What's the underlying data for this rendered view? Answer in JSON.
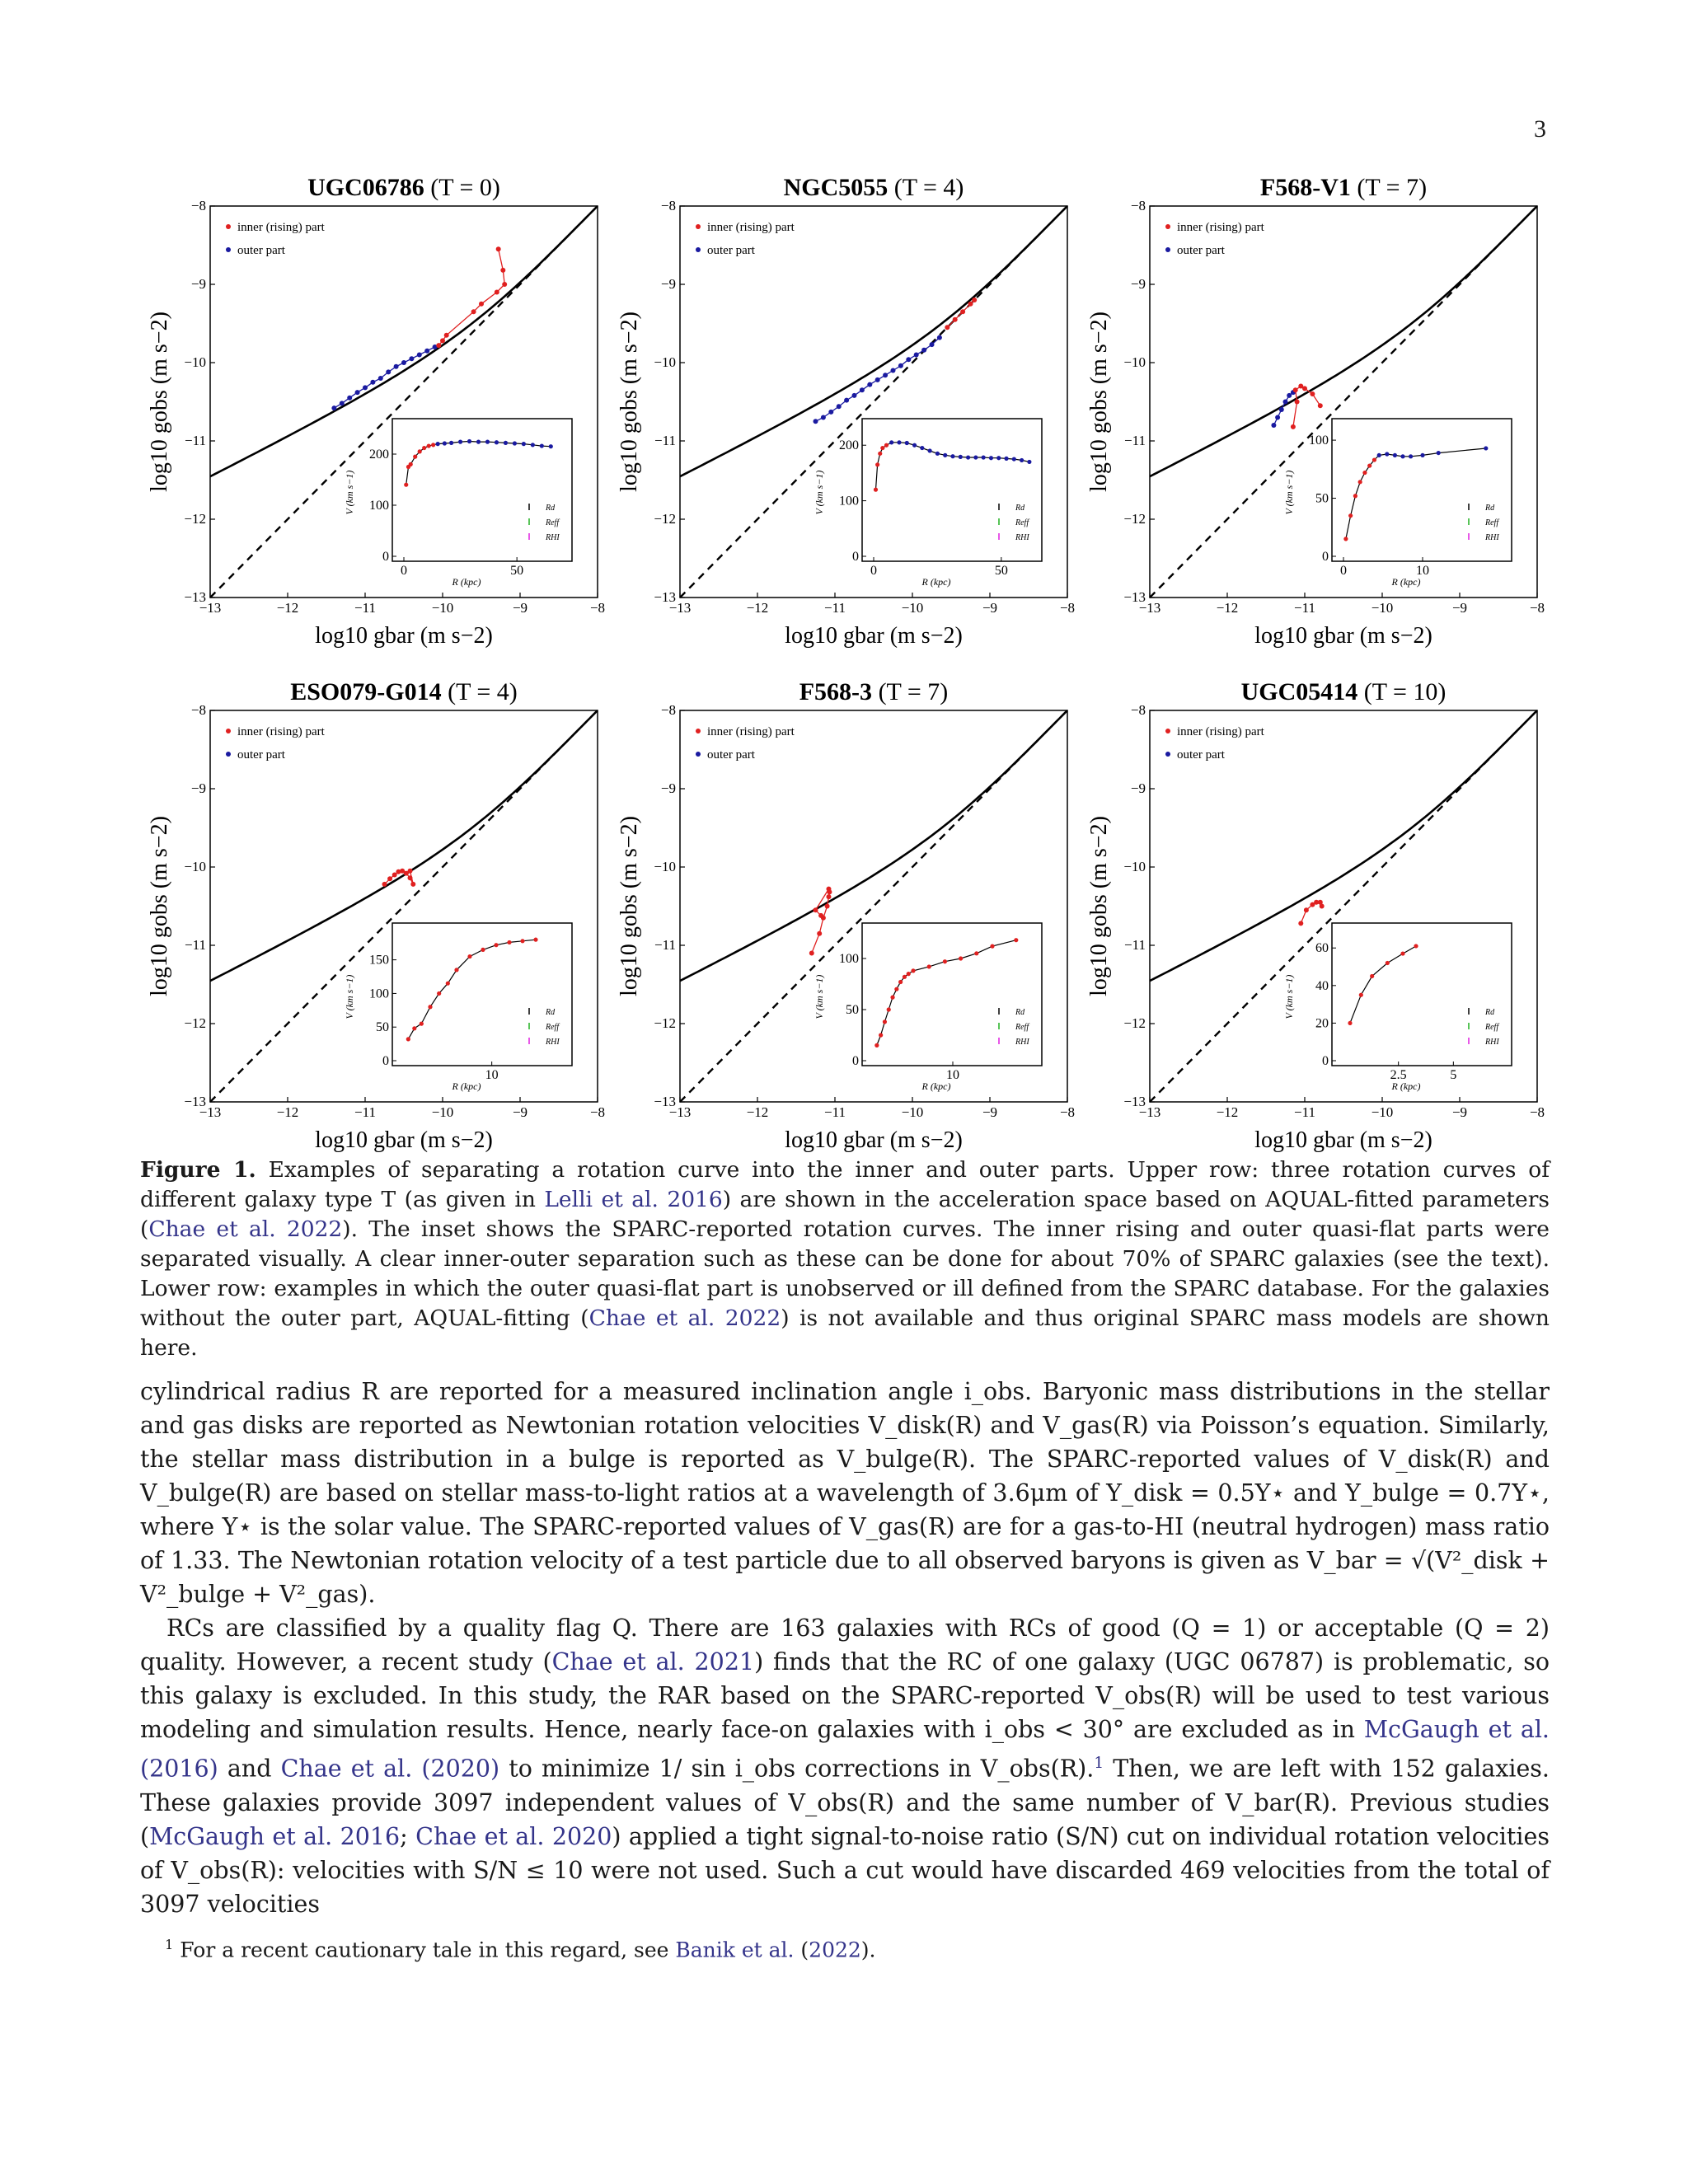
{
  "page_number": "3",
  "chart_data": [
    {
      "type": "scatter",
      "title_name": "UGC06786",
      "title_type": "(T = 0)",
      "xlabel": "log10 gbar (m s−2)",
      "ylabel": "log10 gobs (m s−2)",
      "xlim": [
        -13,
        -8
      ],
      "ylim": [
        -13,
        -8
      ],
      "xticks": [
        "−13",
        "−12",
        "−11",
        "−10",
        "−9",
        "−8"
      ],
      "yticks": [
        "−13",
        "−12",
        "−11",
        "−10",
        "−9",
        "−8"
      ],
      "legend": [
        "inner (rising) part",
        "outer part"
      ],
      "inner": [
        [
          -9.28,
          -8.55
        ],
        [
          -9.22,
          -8.82
        ],
        [
          -9.2,
          -9.0
        ],
        [
          -9.3,
          -9.1
        ],
        [
          -9.5,
          -9.25
        ],
        [
          -9.6,
          -9.35
        ],
        [
          -9.95,
          -9.65
        ],
        [
          -10.0,
          -9.72
        ],
        [
          -10.05,
          -9.78
        ]
      ],
      "outer": [
        [
          -11.4,
          -10.58
        ],
        [
          -11.3,
          -10.52
        ],
        [
          -11.2,
          -10.45
        ],
        [
          -11.1,
          -10.38
        ],
        [
          -11.0,
          -10.32
        ],
        [
          -10.9,
          -10.25
        ],
        [
          -10.8,
          -10.2
        ],
        [
          -10.7,
          -10.12
        ],
        [
          -10.6,
          -10.05
        ],
        [
          -10.5,
          -10.0
        ],
        [
          -10.4,
          -9.95
        ],
        [
          -10.3,
          -9.9
        ],
        [
          -10.2,
          -9.85
        ],
        [
          -10.1,
          -9.8
        ]
      ],
      "inset": {
        "ylabel": "V (km s−1)",
        "xlabel": "R (kpc)",
        "xlim": [
          0,
          70
        ],
        "ylim": [
          0,
          250
        ],
        "xticks": [
          0,
          50
        ],
        "yticks": [
          0,
          100,
          200
        ],
        "legend": [
          "Rd",
          "Reff",
          "RHI"
        ],
        "inner": [
          [
            1,
            140
          ],
          [
            2,
            175
          ],
          [
            3,
            180
          ],
          [
            5,
            195
          ],
          [
            7,
            205
          ],
          [
            9,
            212
          ],
          [
            11,
            216
          ],
          [
            13,
            218
          ]
        ],
        "outer": [
          [
            15,
            220
          ],
          [
            18,
            221
          ],
          [
            21,
            222
          ],
          [
            25,
            224
          ],
          [
            29,
            225
          ],
          [
            33,
            224
          ],
          [
            37,
            224
          ],
          [
            41,
            223
          ],
          [
            45,
            222
          ],
          [
            49,
            221
          ],
          [
            53,
            220
          ],
          [
            57,
            218
          ],
          [
            61,
            216
          ],
          [
            65,
            215
          ]
        ]
      }
    },
    {
      "type": "scatter",
      "title_name": "NGC5055",
      "title_type": "(T = 4)",
      "xlabel": "log10 gbar (m s−2)",
      "ylabel": "log10 gobs (m s−2)",
      "xlim": [
        -13,
        -8
      ],
      "ylim": [
        -13,
        -8
      ],
      "xticks": [
        "−13",
        "−12",
        "−11",
        "−10",
        "−9",
        "−8"
      ],
      "yticks": [
        "−13",
        "−12",
        "−11",
        "−10",
        "−9",
        "−8"
      ],
      "legend": [
        "inner (rising) part",
        "outer part"
      ],
      "inner": [
        [
          -9.55,
          -9.55
        ],
        [
          -9.45,
          -9.45
        ],
        [
          -9.35,
          -9.35
        ],
        [
          -9.25,
          -9.25
        ],
        [
          -9.2,
          -9.2
        ]
      ],
      "outer": [
        [
          -11.25,
          -10.75
        ],
        [
          -11.15,
          -10.7
        ],
        [
          -11.05,
          -10.63
        ],
        [
          -10.95,
          -10.56
        ],
        [
          -10.85,
          -10.48
        ],
        [
          -10.75,
          -10.42
        ],
        [
          -10.65,
          -10.35
        ],
        [
          -10.55,
          -10.28
        ],
        [
          -10.45,
          -10.22
        ],
        [
          -10.35,
          -10.16
        ],
        [
          -10.25,
          -10.1
        ],
        [
          -10.15,
          -10.04
        ],
        [
          -10.05,
          -9.96
        ],
        [
          -9.95,
          -9.9
        ],
        [
          -9.85,
          -9.84
        ],
        [
          -9.75,
          -9.77
        ],
        [
          -9.65,
          -9.68
        ]
      ],
      "inset": {
        "ylabel": "V (km s−1)",
        "xlabel": "R (kpc)",
        "xlim": [
          0,
          62
        ],
        "ylim": [
          0,
          230
        ],
        "xticks": [
          0,
          50
        ],
        "yticks": [
          0,
          100,
          200
        ],
        "legend": [
          "Rd",
          "Reff",
          "RHI"
        ],
        "inner": [
          [
            0.8,
            120
          ],
          [
            1.5,
            165
          ],
          [
            2.5,
            185
          ],
          [
            3.5,
            195
          ],
          [
            5,
            200
          ]
        ],
        "outer": [
          [
            7,
            205
          ],
          [
            10,
            205
          ],
          [
            13,
            204
          ],
          [
            16,
            200
          ],
          [
            19,
            195
          ],
          [
            22,
            190
          ],
          [
            25,
            185
          ],
          [
            28,
            182
          ],
          [
            31,
            180
          ],
          [
            34,
            179
          ],
          [
            37,
            178
          ],
          [
            40,
            178
          ],
          [
            43,
            178
          ],
          [
            46,
            177
          ],
          [
            49,
            177
          ],
          [
            52,
            176
          ],
          [
            55,
            175
          ],
          [
            58,
            173
          ],
          [
            61,
            170
          ]
        ]
      }
    },
    {
      "type": "scatter",
      "title_name": "F568-V1",
      "title_type": "(T = 7)",
      "xlabel": "log10 gbar (m s−2)",
      "ylabel": "log10 gobs (m s−2)",
      "xlim": [
        -13,
        -8
      ],
      "ylim": [
        -13,
        -8
      ],
      "xticks": [
        "−13",
        "−12",
        "−11",
        "−10",
        "−9",
        "−8"
      ],
      "yticks": [
        "−13",
        "−12",
        "−11",
        "−10",
        "−9",
        "−8"
      ],
      "legend": [
        "inner (rising) part",
        "outer part"
      ],
      "inner": [
        [
          -10.8,
          -10.55
        ],
        [
          -10.9,
          -10.4
        ],
        [
          -11.0,
          -10.33
        ],
        [
          -11.05,
          -10.3
        ],
        [
          -11.12,
          -10.35
        ],
        [
          -11.1,
          -10.5
        ],
        [
          -11.15,
          -10.82
        ]
      ],
      "outer": [
        [
          -11.15,
          -10.38
        ],
        [
          -11.2,
          -10.42
        ],
        [
          -11.25,
          -10.5
        ],
        [
          -11.3,
          -10.6
        ],
        [
          -11.35,
          -10.7
        ],
        [
          -11.4,
          -10.8
        ]
      ],
      "inset": {
        "ylabel": "V (km s−1)",
        "xlabel": "R (kpc)",
        "xlim": [
          0,
          20
        ],
        "ylim": [
          0,
          110
        ],
        "xticks": [
          0,
          10
        ],
        "yticks": [
          0,
          50,
          100
        ],
        "legend": [
          "Rd",
          "Reff",
          "RHI"
        ],
        "inner": [
          [
            0.3,
            15
          ],
          [
            0.9,
            35
          ],
          [
            1.5,
            52
          ],
          [
            2.1,
            64
          ],
          [
            2.7,
            72
          ],
          [
            3.3,
            78
          ],
          [
            3.9,
            83
          ]
        ],
        "outer": [
          [
            4.5,
            87
          ],
          [
            5.5,
            88
          ],
          [
            6.5,
            87
          ],
          [
            7.5,
            86
          ],
          [
            8.5,
            86
          ],
          [
            10,
            87
          ],
          [
            12,
            89
          ],
          [
            18,
            93
          ]
        ]
      }
    },
    {
      "type": "scatter",
      "title_name": "ESO079-G014",
      "title_type": "(T = 4)",
      "xlabel": "log10 gbar (m s−2)",
      "ylabel": "log10 gobs (m s−2)",
      "xlim": [
        -13,
        -8
      ],
      "ylim": [
        -13,
        -8
      ],
      "xticks": [
        "−13",
        "−12",
        "−11",
        "−10",
        "−9",
        "−8"
      ],
      "yticks": [
        "−13",
        "−12",
        "−11",
        "−10",
        "−9",
        "−8"
      ],
      "legend": [
        "inner (rising) part",
        "outer part"
      ],
      "inner": [
        [
          -10.75,
          -10.22
        ],
        [
          -10.68,
          -10.15
        ],
        [
          -10.62,
          -10.1
        ],
        [
          -10.57,
          -10.06
        ],
        [
          -10.52,
          -10.05
        ],
        [
          -10.47,
          -10.08
        ],
        [
          -10.42,
          -10.14
        ],
        [
          -10.38,
          -10.22
        ],
        [
          -10.42,
          -10.05
        ]
      ],
      "outer": [],
      "inset": {
        "ylabel": "V (km s−1)",
        "xlabel": "R (kpc)",
        "xlim": [
          0,
          18
        ],
        "ylim": [
          0,
          190
        ],
        "xticks": [
          10
        ],
        "yticks": [
          0,
          50,
          100,
          150
        ],
        "legend": [
          "Rd",
          "Reff",
          "RHI"
        ],
        "inner": [
          [
            0.5,
            32
          ],
          [
            1.2,
            48
          ],
          [
            2,
            55
          ],
          [
            3,
            80
          ],
          [
            4,
            100
          ],
          [
            5,
            115
          ],
          [
            6,
            135
          ],
          [
            7.5,
            155
          ],
          [
            9,
            165
          ],
          [
            10.5,
            172
          ],
          [
            12,
            176
          ],
          [
            13.5,
            178
          ],
          [
            15,
            180
          ]
        ],
        "outer": []
      }
    },
    {
      "type": "scatter",
      "title_name": "F568-3",
      "title_type": "(T = 7)",
      "xlabel": "log10 gbar (m s−2)",
      "ylabel": "log10 gobs (m s−2)",
      "xlim": [
        -13,
        -8
      ],
      "ylim": [
        -13,
        -8
      ],
      "xticks": [
        "−13",
        "−12",
        "−11",
        "−10",
        "−9",
        "−8"
      ],
      "yticks": [
        "−13",
        "−12",
        "−11",
        "−10",
        "−9",
        "−8"
      ],
      "legend": [
        "inner (rising) part",
        "outer part"
      ],
      "inner": [
        [
          -11.3,
          -11.1
        ],
        [
          -11.2,
          -10.85
        ],
        [
          -11.15,
          -10.65
        ],
        [
          -11.1,
          -10.5
        ],
        [
          -11.08,
          -10.38
        ],
        [
          -11.07,
          -10.32
        ],
        [
          -11.08,
          -10.28
        ],
        [
          -11.25,
          -10.55
        ],
        [
          -11.18,
          -10.62
        ]
      ],
      "outer": [],
      "inset": {
        "ylabel": "V (km s−1)",
        "xlabel": "R (kpc)",
        "xlim": [
          0,
          20
        ],
        "ylim": [
          0,
          125
        ],
        "xticks": [
          10
        ],
        "yticks": [
          0,
          50,
          100
        ],
        "legend": [
          "Rd",
          "Reff",
          "RHI"
        ],
        "inner": [
          [
            0.4,
            15
          ],
          [
            0.9,
            25
          ],
          [
            1.4,
            38
          ],
          [
            1.9,
            50
          ],
          [
            2.4,
            62
          ],
          [
            2.9,
            70
          ],
          [
            3.4,
            77
          ],
          [
            3.9,
            82
          ],
          [
            4.4,
            85
          ],
          [
            5,
            88
          ],
          [
            7,
            92
          ],
          [
            9,
            97
          ],
          [
            11,
            100
          ],
          [
            13,
            105
          ],
          [
            15,
            112
          ],
          [
            18,
            118
          ]
        ],
        "outer": []
      }
    },
    {
      "type": "scatter",
      "title_name": "UGC05414",
      "title_type": "(T = 10)",
      "xlabel": "log10 gbar (m s−2)",
      "ylabel": "log10 gobs (m s−2)",
      "xlim": [
        -13,
        -8
      ],
      "ylim": [
        -13,
        -8
      ],
      "xticks": [
        "−13",
        "−12",
        "−11",
        "−10",
        "−9",
        "−8"
      ],
      "yticks": [
        "−13",
        "−12",
        "−11",
        "−10",
        "−9",
        "−8"
      ],
      "legend": [
        "inner (rising) part",
        "outer part"
      ],
      "inner": [
        [
          -11.05,
          -10.72
        ],
        [
          -10.98,
          -10.55
        ],
        [
          -10.9,
          -10.48
        ],
        [
          -10.85,
          -10.45
        ],
        [
          -10.8,
          -10.45
        ],
        [
          -10.78,
          -10.5
        ]
      ],
      "outer": [],
      "inset": {
        "ylabel": "V (km s−1)",
        "xlabel": "R (kpc)",
        "xlim": [
          0,
          7.2
        ],
        "ylim": [
          0,
          68
        ],
        "xticks": [
          2.5,
          5.0
        ],
        "yticks": [
          0,
          20,
          40,
          60
        ],
        "legend": [
          "Rd",
          "Reff",
          "RHI"
        ],
        "inner": [
          [
            0.3,
            20
          ],
          [
            0.8,
            35
          ],
          [
            1.3,
            45
          ],
          [
            2,
            52
          ],
          [
            2.7,
            57
          ],
          [
            3.3,
            61
          ]
        ],
        "outer": []
      }
    }
  ],
  "caption": {
    "label": "Figure 1.",
    "t1": " Examples of separating a rotation curve into the inner and outer parts. Upper row: three rotation curves of different galaxy type T (as given in ",
    "r1": "Lelli et al. 2016",
    "t2": ") are shown in the acceleration space based on AQUAL-fitted parameters (",
    "r2": "Chae et al. 2022",
    "t3": "). The inset shows the SPARC-reported rotation curves. The inner rising and outer quasi-flat parts were separated visually. A clear inner-outer separation such as these can be done for about 70% of SPARC galaxies (see the text). Lower row: examples in which the outer quasi-flat part is unobserved or ill defined from the SPARC database. For the galaxies without the outer part, AQUAL-fitting (",
    "r3": "Chae et al. 2022",
    "t4": ") is not available and thus original SPARC mass models are shown here."
  },
  "body": {
    "p1": "cylindrical radius R are reported for a measured inclination angle i_obs. Baryonic mass distributions in the stellar and gas disks are reported as Newtonian rotation velocities V_disk(R) and V_gas(R) via Poisson’s equation. Similarly, the stellar mass distribution in a bulge is reported as V_bulge(R). The SPARC-reported values of V_disk(R) and V_bulge(R) are based on stellar mass-to-light ratios at a wavelength of 3.6μm of Υ_disk = 0.5Υ⋆ and Υ_bulge = 0.7Υ⋆, where Υ⋆ is the solar value. The SPARC-reported values of V_gas(R) are for a gas-to-HI (neutral hydrogen) mass ratio of 1.33. The Newtonian rotation velocity of a test particle due to all observed baryons is given as V_bar = √(V²_disk + V²_bulge + V²_gas).",
    "p2a": "RCs are classified by a quality flag Q. There are 163 galaxies with RCs of good (Q = 1) or acceptable (Q = 2) quality. However, a recent study (",
    "p2r1": "Chae et al. 2021",
    "p2b": ") finds that the RC of one galaxy (UGC 06787) is problematic, so this galaxy is excluded. In this study, the RAR based on the SPARC-reported V_obs(R) will be used to test various modeling and simulation results. Hence, nearly face-on galaxies with i_obs < 30° are excluded as in ",
    "p2r2": "McGaugh et al. (2016)",
    "p2c": " and ",
    "p2r3": "Chae et al. (2020)",
    "p2d": " to minimize 1/ sin i_obs corrections in V_obs(R).",
    "p2fn": "1",
    "p2e": " Then, we are left with 152 galaxies. These galaxies provide 3097 independent values of V_obs(R) and the same number of V_bar(R). Previous studies (",
    "p2r4": "McGaugh et al. 2016",
    "p2f": "; ",
    "p2r5": "Chae et al. 2020",
    "p2g": ") applied a tight signal-to-noise ratio (S/N) cut on individual rotation velocities of V_obs(R): velocities with S/N ≤ 10 were not used. Such a cut would have discarded 469 velocities from the total of 3097 velocities"
  },
  "footnote": {
    "mark": "1",
    "text": " For a recent cautionary tale in this regard, see ",
    "ref": "Banik et al.",
    "year_open": " (",
    "year": "2022",
    "year_close": ")."
  },
  "colors": {
    "inner": "#e02020",
    "outer": "#1a1aa0",
    "text": "#1a1a1a",
    "ref": "#34348a",
    "marker_rd": "#000000",
    "marker_reff": "#20b020",
    "marker_rhi": "#e020e0"
  }
}
